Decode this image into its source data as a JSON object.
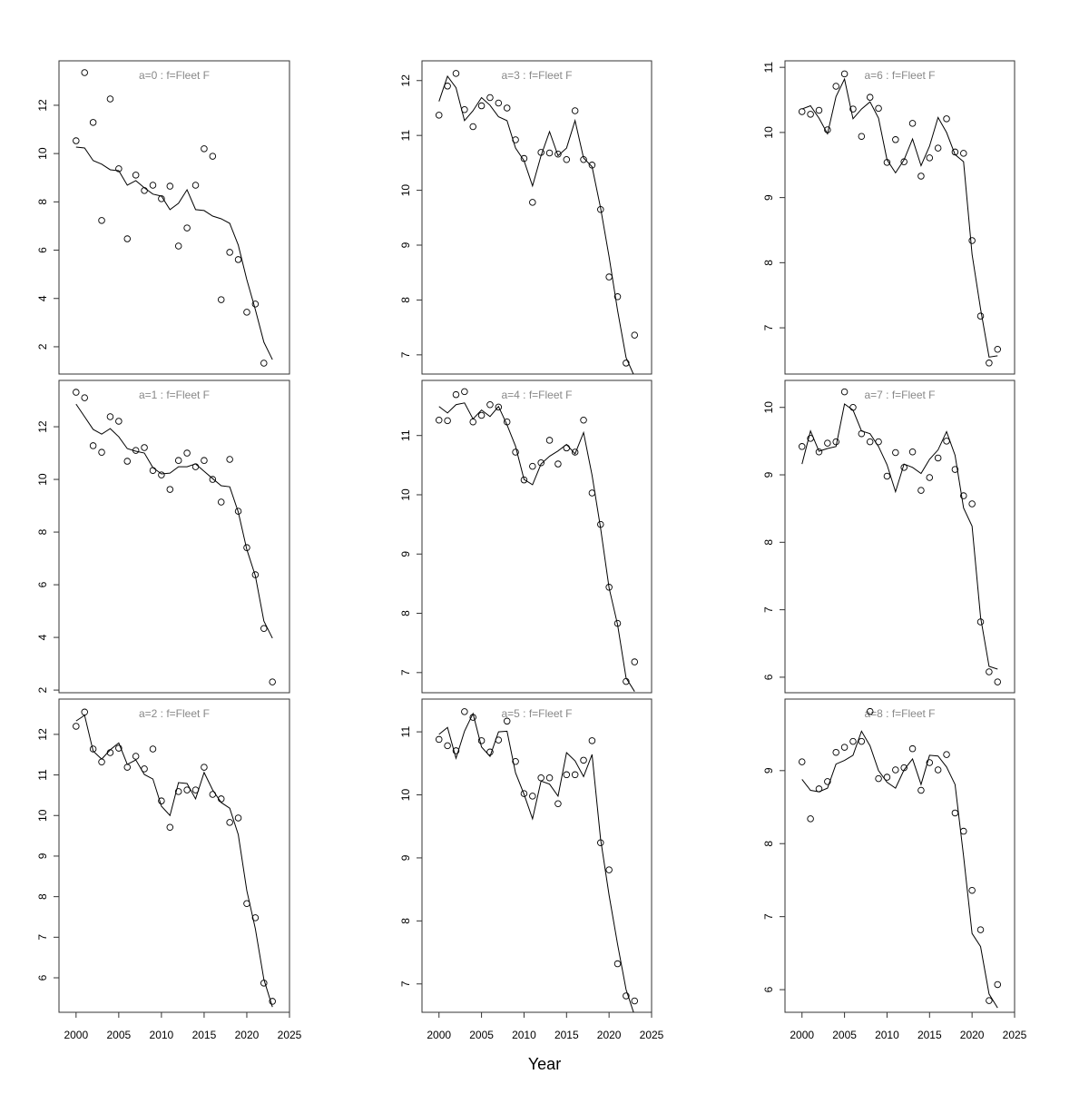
{
  "xlabel": "Year",
  "chart_data": [
    {
      "type": "line",
      "title": "a=0  :  f=Fleet F",
      "x": [
        2000,
        2001,
        2002,
        2003,
        2004,
        2005,
        2006,
        2007,
        2008,
        2009,
        2010,
        2011,
        2012,
        2013,
        2014,
        2015,
        2016,
        2017,
        2018,
        2019,
        2020,
        2021,
        2022,
        2023
      ],
      "xlim": [
        1998,
        2025
      ],
      "ylim": [
        0.87,
        13.84
      ],
      "yticks": [
        2,
        4,
        6,
        8,
        10,
        12
      ],
      "series": [
        {
          "style": "points",
          "color": "#000000",
          "values": [
            10.53,
            13.35,
            11.29,
            7.23,
            12.26,
            9.37,
            6.47,
            9.11,
            8.47,
            8.69,
            8.13,
            8.65,
            6.17,
            6.92,
            8.69,
            10.2,
            9.89,
            3.95,
            5.91,
            5.61,
            3.43,
            3.77,
            1.32,
            null
          ]
        },
        {
          "style": "line",
          "color": "#000000",
          "values": [
            10.27,
            10.23,
            9.71,
            9.56,
            9.33,
            9.29,
            8.69,
            8.88,
            8.58,
            8.32,
            8.24,
            7.68,
            7.94,
            8.5,
            7.68,
            7.64,
            7.41,
            7.3,
            7.11,
            6.21,
            4.78,
            3.54,
            2.19,
            1.47
          ]
        }
      ]
    },
    {
      "type": "line",
      "title": "a=1  :  f=Fleet F",
      "x": [
        2000,
        2001,
        2002,
        2003,
        2004,
        2005,
        2006,
        2007,
        2008,
        2009,
        2010,
        2011,
        2012,
        2013,
        2014,
        2015,
        2016,
        2017,
        2018,
        2019,
        2020,
        2021,
        2022,
        2023
      ],
      "xlim": [
        1998,
        2025
      ],
      "ylim": [
        1.9,
        13.76
      ],
      "yticks": [
        2,
        4,
        6,
        8,
        10,
        12
      ],
      "series": [
        {
          "style": "points",
          "color": "#000000",
          "values": [
            13.31,
            13.1,
            11.28,
            11.03,
            12.38,
            12.21,
            10.69,
            11.1,
            11.21,
            10.34,
            10.17,
            9.62,
            10.72,
            11.0,
            10.48,
            10.72,
            10.0,
            9.14,
            10.76,
            8.79,
            7.41,
            6.38,
            4.34,
            2.31
          ]
        },
        {
          "style": "line",
          "color": "#000000",
          "values": [
            12.86,
            12.38,
            11.9,
            11.72,
            11.93,
            11.62,
            11.17,
            11.07,
            11.0,
            10.45,
            10.21,
            10.24,
            10.48,
            10.48,
            10.59,
            10.31,
            10.03,
            9.76,
            9.72,
            8.76,
            7.34,
            6.34,
            4.62,
            3.97
          ]
        }
      ]
    },
    {
      "type": "line",
      "title": "a=2  :  f=Fleet F",
      "x": [
        2000,
        2001,
        2002,
        2003,
        2004,
        2005,
        2006,
        2007,
        2008,
        2009,
        2010,
        2011,
        2012,
        2013,
        2014,
        2015,
        2016,
        2017,
        2018,
        2019,
        2020,
        2021,
        2022,
        2023
      ],
      "xlim": [
        1998,
        2025
      ],
      "ylim": [
        5.15,
        12.87
      ],
      "yticks": [
        6,
        7,
        8,
        9,
        10,
        11,
        12
      ],
      "xticks": [
        2000,
        2005,
        2010,
        2015,
        2020,
        2025
      ],
      "series": [
        {
          "style": "points",
          "color": "#000000",
          "values": [
            12.2,
            12.55,
            11.64,
            11.32,
            11.55,
            11.66,
            11.19,
            11.46,
            11.15,
            11.64,
            10.36,
            9.71,
            10.59,
            10.63,
            10.63,
            11.19,
            10.52,
            10.41,
            9.83,
            9.94,
            7.83,
            7.48,
            5.87,
            5.42
          ]
        },
        {
          "style": "line",
          "color": "#000000",
          "values": [
            12.33,
            12.47,
            11.59,
            11.39,
            11.62,
            11.79,
            11.26,
            11.37,
            11.01,
            10.9,
            10.23,
            10.0,
            10.81,
            10.79,
            10.41,
            11.06,
            10.63,
            10.32,
            10.18,
            9.53,
            8.15,
            7.21,
            5.96,
            5.28
          ]
        }
      ]
    },
    {
      "type": "line",
      "title": "a=3  :  f=Fleet F",
      "x": [
        2000,
        2001,
        2002,
        2003,
        2004,
        2005,
        2006,
        2007,
        2008,
        2009,
        2010,
        2011,
        2012,
        2013,
        2014,
        2015,
        2016,
        2017,
        2018,
        2019,
        2020,
        2021,
        2022,
        2023
      ],
      "xlim": [
        1998,
        2025
      ],
      "ylim": [
        6.65,
        12.36
      ],
      "yticks": [
        7,
        8,
        9,
        10,
        11,
        12
      ],
      "series": [
        {
          "style": "points",
          "color": "#000000",
          "values": [
            11.37,
            11.9,
            12.13,
            11.47,
            11.16,
            11.54,
            11.69,
            11.59,
            11.5,
            10.92,
            10.58,
            9.78,
            10.69,
            10.68,
            10.66,
            10.56,
            11.45,
            10.56,
            10.46,
            9.65,
            8.42,
            8.06,
            6.85,
            7.36
          ]
        },
        {
          "style": "line",
          "color": "#000000",
          "values": [
            11.62,
            12.08,
            11.87,
            11.27,
            11.45,
            11.69,
            11.55,
            11.34,
            11.27,
            10.77,
            10.54,
            10.08,
            10.63,
            11.07,
            10.63,
            10.77,
            11.27,
            10.59,
            10.43,
            9.68,
            8.79,
            7.81,
            6.95,
            6.6
          ]
        }
      ]
    },
    {
      "type": "line",
      "title": "a=4  :  f=Fleet F",
      "x": [
        2000,
        2001,
        2002,
        2003,
        2004,
        2005,
        2006,
        2007,
        2008,
        2009,
        2010,
        2011,
        2012,
        2013,
        2014,
        2015,
        2016,
        2017,
        2018,
        2019,
        2020,
        2021,
        2022,
        2023
      ],
      "xlim": [
        1998,
        2025
      ],
      "ylim": [
        6.66,
        11.93
      ],
      "yticks": [
        7,
        8,
        9,
        10,
        11
      ],
      "series": [
        {
          "style": "points",
          "color": "#000000",
          "values": [
            11.26,
            11.25,
            11.69,
            11.74,
            11.23,
            11.34,
            11.52,
            11.48,
            11.23,
            10.72,
            10.25,
            10.48,
            10.54,
            10.92,
            10.52,
            10.79,
            10.72,
            11.26,
            10.03,
            9.5,
            8.44,
            7.83,
            6.85,
            7.18
          ]
        },
        {
          "style": "line",
          "color": "#000000",
          "values": [
            11.49,
            11.38,
            11.52,
            11.55,
            11.28,
            11.43,
            11.32,
            11.49,
            11.18,
            10.82,
            10.26,
            10.17,
            10.52,
            10.65,
            10.74,
            10.85,
            10.69,
            11.05,
            10.33,
            9.44,
            8.43,
            7.81,
            6.91,
            6.68
          ]
        }
      ]
    },
    {
      "type": "line",
      "title": "a=5  :  f=Fleet F",
      "x": [
        2000,
        2001,
        2002,
        2003,
        2004,
        2005,
        2006,
        2007,
        2008,
        2009,
        2010,
        2011,
        2012,
        2013,
        2014,
        2015,
        2016,
        2017,
        2018,
        2019,
        2020,
        2021,
        2022,
        2023
      ],
      "xlim": [
        1998,
        2025
      ],
      "ylim": [
        6.55,
        11.52
      ],
      "yticks": [
        7,
        8,
        9,
        10,
        11
      ],
      "xticks": [
        2000,
        2005,
        2010,
        2015,
        2020,
        2025
      ],
      "series": [
        {
          "style": "points",
          "color": "#000000",
          "values": [
            10.88,
            10.78,
            10.7,
            11.32,
            11.23,
            10.86,
            10.68,
            10.87,
            11.17,
            10.53,
            10.02,
            9.98,
            10.27,
            10.27,
            9.86,
            10.32,
            10.32,
            10.55,
            10.86,
            9.24,
            8.81,
            7.32,
            6.81,
            6.73
          ]
        },
        {
          "style": "line",
          "color": "#000000",
          "values": [
            10.96,
            11.07,
            10.58,
            11.01,
            11.29,
            10.76,
            10.61,
            11.0,
            11.01,
            10.35,
            10.01,
            9.62,
            10.22,
            10.17,
            9.98,
            10.67,
            10.54,
            10.29,
            10.64,
            9.3,
            8.41,
            7.63,
            6.91,
            6.5
          ]
        }
      ]
    },
    {
      "type": "line",
      "title": "a=6  :  f=Fleet F",
      "x": [
        2000,
        2001,
        2002,
        2003,
        2004,
        2005,
        2006,
        2007,
        2008,
        2009,
        2010,
        2011,
        2012,
        2013,
        2014,
        2015,
        2016,
        2017,
        2018,
        2019,
        2020,
        2021,
        2022,
        2023
      ],
      "xlim": [
        1998,
        2025
      ],
      "ylim": [
        6.29,
        11.1
      ],
      "yticks": [
        7,
        8,
        9,
        10,
        11
      ],
      "series": [
        {
          "style": "points",
          "color": "#000000",
          "values": [
            10.32,
            10.28,
            10.34,
            10.04,
            10.71,
            10.9,
            10.36,
            9.94,
            10.54,
            10.37,
            9.54,
            9.89,
            9.55,
            10.14,
            9.33,
            9.61,
            9.76,
            10.21,
            9.7,
            9.68,
            8.34,
            7.18,
            6.46,
            6.67
          ]
        },
        {
          "style": "line",
          "color": "#000000",
          "values": [
            10.36,
            10.41,
            10.22,
            9.98,
            10.55,
            10.82,
            10.21,
            10.36,
            10.47,
            10.22,
            9.58,
            9.38,
            9.58,
            9.9,
            9.49,
            9.79,
            10.23,
            10.0,
            9.66,
            9.55,
            8.13,
            7.29,
            6.55,
            6.57
          ]
        }
      ]
    },
    {
      "type": "line",
      "title": "a=7  :  f=Fleet F",
      "x": [
        2000,
        2001,
        2002,
        2003,
        2004,
        2005,
        2006,
        2007,
        2008,
        2009,
        2010,
        2011,
        2012,
        2013,
        2014,
        2015,
        2016,
        2017,
        2018,
        2019,
        2020,
        2021,
        2022,
        2023
      ],
      "xlim": [
        1998,
        2025
      ],
      "ylim": [
        5.77,
        10.4
      ],
      "yticks": [
        6,
        7,
        8,
        9,
        10
      ],
      "series": [
        {
          "style": "points",
          "color": "#000000",
          "values": [
            9.42,
            9.54,
            9.34,
            9.47,
            9.49,
            10.23,
            10.0,
            9.61,
            9.49,
            9.49,
            8.98,
            9.33,
            9.11,
            9.34,
            8.77,
            8.96,
            9.25,
            9.5,
            9.08,
            8.69,
            8.57,
            6.82,
            6.08,
            5.93
          ]
        },
        {
          "style": "line",
          "color": "#000000",
          "values": [
            9.16,
            9.65,
            9.35,
            9.39,
            9.42,
            10.05,
            9.96,
            9.65,
            9.61,
            9.42,
            9.15,
            8.75,
            9.16,
            9.11,
            9.02,
            9.23,
            9.37,
            9.64,
            9.29,
            8.51,
            8.24,
            6.89,
            6.16,
            6.12
          ]
        }
      ]
    },
    {
      "type": "line",
      "title": "a=8  :  f=Fleet F",
      "x": [
        2000,
        2001,
        2002,
        2003,
        2004,
        2005,
        2006,
        2007,
        2008,
        2009,
        2010,
        2011,
        2012,
        2013,
        2014,
        2015,
        2016,
        2017,
        2018,
        2019,
        2020,
        2021,
        2022,
        2023
      ],
      "xlim": [
        1998,
        2025
      ],
      "ylim": [
        5.69,
        9.98
      ],
      "yticks": [
        6,
        7,
        8,
        9
      ],
      "xticks": [
        2000,
        2005,
        2010,
        2015,
        2020,
        2025
      ],
      "series": [
        {
          "style": "points",
          "color": "#000000",
          "values": [
            9.12,
            8.34,
            8.75,
            8.85,
            9.25,
            9.32,
            9.4,
            9.4,
            9.81,
            8.89,
            8.91,
            9.01,
            9.04,
            9.3,
            8.73,
            9.11,
            9.01,
            9.22,
            8.42,
            8.17,
            7.36,
            6.82,
            5.85,
            6.07
          ]
        },
        {
          "style": "line",
          "color": "#000000",
          "values": [
            8.88,
            8.73,
            8.71,
            8.76,
            9.09,
            9.14,
            9.21,
            9.54,
            9.34,
            9.0,
            8.84,
            8.76,
            9.01,
            9.16,
            8.81,
            9.21,
            9.2,
            9.05,
            8.81,
            7.83,
            6.77,
            6.59,
            5.94,
            5.75
          ]
        }
      ]
    }
  ]
}
